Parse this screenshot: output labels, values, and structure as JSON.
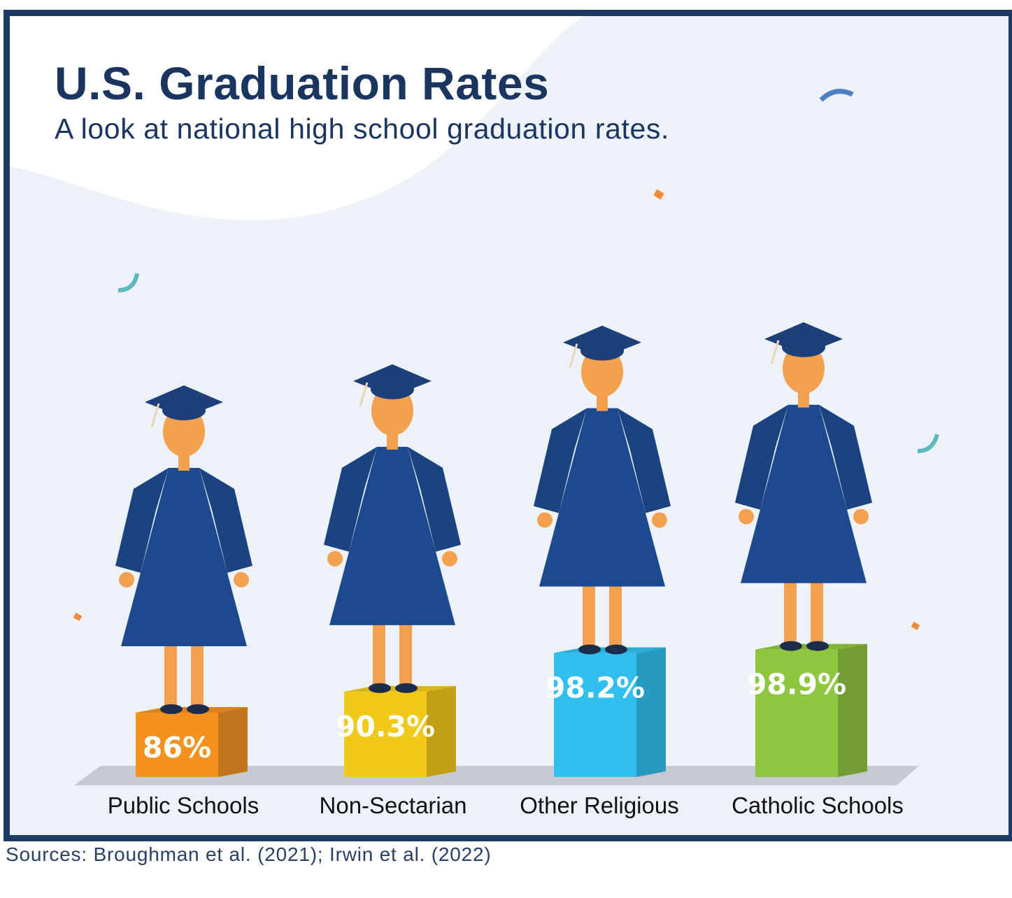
{
  "header": {
    "title": "U.S. Graduation Rates",
    "subtitle": "A look at national high school graduation rates."
  },
  "footer": {
    "sources": "Sources: Broughman et al. (2021); Irwin et al. (2022)"
  },
  "colors": {
    "frame": "#1c3a64",
    "background": "#edf2f8",
    "gown": "#1d4a8e",
    "bars": [
      "#f3921f",
      "#f1c919",
      "#2fc0ef",
      "#8dc63f"
    ]
  },
  "chart_data": {
    "type": "bar",
    "title": "U.S. Graduation Rates",
    "categories": [
      "Public Schools",
      "Non-Sectarian",
      "Other Religious",
      "Catholic Schools"
    ],
    "values": [
      86,
      90.3,
      98.2,
      98.9
    ],
    "value_labels": [
      "86%",
      "90.3%",
      "98.2%",
      "98.9%"
    ],
    "grid": false,
    "legend": "none"
  }
}
